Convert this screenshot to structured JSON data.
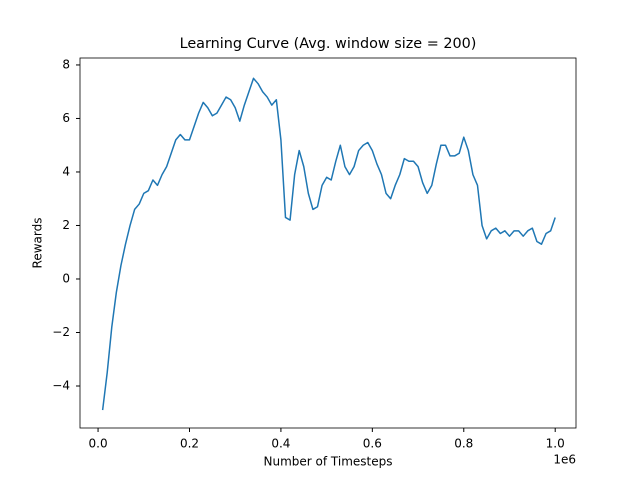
{
  "chart_data": {
    "type": "line",
    "title": "Learning Curve (Avg. window size = 200)",
    "x_label": "Number of Timesteps",
    "y_label": "Rewards",
    "x_offset_label": "1e6",
    "x": [
      0.01,
      0.02,
      0.03,
      0.04,
      0.05,
      0.06,
      0.07,
      0.08,
      0.09,
      0.1,
      0.11,
      0.12,
      0.13,
      0.14,
      0.15,
      0.16,
      0.17,
      0.18,
      0.19,
      0.2,
      0.21,
      0.22,
      0.23,
      0.24,
      0.25,
      0.26,
      0.27,
      0.28,
      0.29,
      0.3,
      0.31,
      0.32,
      0.33,
      0.34,
      0.35,
      0.36,
      0.37,
      0.38,
      0.39,
      0.4,
      0.41,
      0.42,
      0.43,
      0.44,
      0.45,
      0.46,
      0.47,
      0.48,
      0.49,
      0.5,
      0.51,
      0.52,
      0.53,
      0.54,
      0.55,
      0.56,
      0.57,
      0.58,
      0.59,
      0.6,
      0.61,
      0.62,
      0.63,
      0.64,
      0.65,
      0.66,
      0.67,
      0.68,
      0.69,
      0.7,
      0.71,
      0.72,
      0.73,
      0.74,
      0.75,
      0.76,
      0.77,
      0.78,
      0.79,
      0.8,
      0.81,
      0.82,
      0.83,
      0.84,
      0.85,
      0.86,
      0.87,
      0.88,
      0.89,
      0.9,
      0.91,
      0.92,
      0.93,
      0.94,
      0.95,
      0.96,
      0.97,
      0.98,
      0.99,
      1.0
    ],
    "series": [
      {
        "name": "Rewards",
        "color": "#1f77b4",
        "values": [
          -4.9,
          -3.5,
          -1.8,
          -0.5,
          0.5,
          1.3,
          2.0,
          2.6,
          2.8,
          3.2,
          3.3,
          3.7,
          3.5,
          3.9,
          4.2,
          4.7,
          5.2,
          5.4,
          5.2,
          5.2,
          5.7,
          6.2,
          6.6,
          6.4,
          6.1,
          6.2,
          6.5,
          6.8,
          6.7,
          6.4,
          5.9,
          6.5,
          7.0,
          7.5,
          7.3,
          7.0,
          6.8,
          6.5,
          6.7,
          5.2,
          2.3,
          2.2,
          3.9,
          4.8,
          4.2,
          3.2,
          2.6,
          2.7,
          3.5,
          3.8,
          3.7,
          4.4,
          5.0,
          4.2,
          3.9,
          4.2,
          4.8,
          5.0,
          5.1,
          4.8,
          4.3,
          3.9,
          3.2,
          3.0,
          3.5,
          3.9,
          4.5,
          4.4,
          4.4,
          4.2,
          3.6,
          3.2,
          3.5,
          4.3,
          5.0,
          5.0,
          4.6,
          4.6,
          4.7,
          5.3,
          4.8,
          3.9,
          3.5,
          2.0,
          1.5,
          1.8,
          1.9,
          1.7,
          1.8,
          1.6,
          1.8,
          1.8,
          1.6,
          1.8,
          1.9,
          1.4,
          1.3,
          1.7,
          1.8,
          2.3
        ]
      }
    ],
    "xlim": [
      -0.0395,
      1.0455
    ],
    "ylim": [
      -5.57,
      8.26
    ],
    "xticks": [
      {
        "value": 0,
        "label": "0.0"
      },
      0.2,
      0.4,
      0.6,
      0.8,
      {
        "value": 1,
        "label": "1.0"
      }
    ],
    "yticks": [
      {
        "value": -4,
        "label": "−4"
      },
      {
        "value": -2,
        "label": "−2"
      },
      0,
      2,
      4,
      6,
      8
    ],
    "grid": false
  }
}
